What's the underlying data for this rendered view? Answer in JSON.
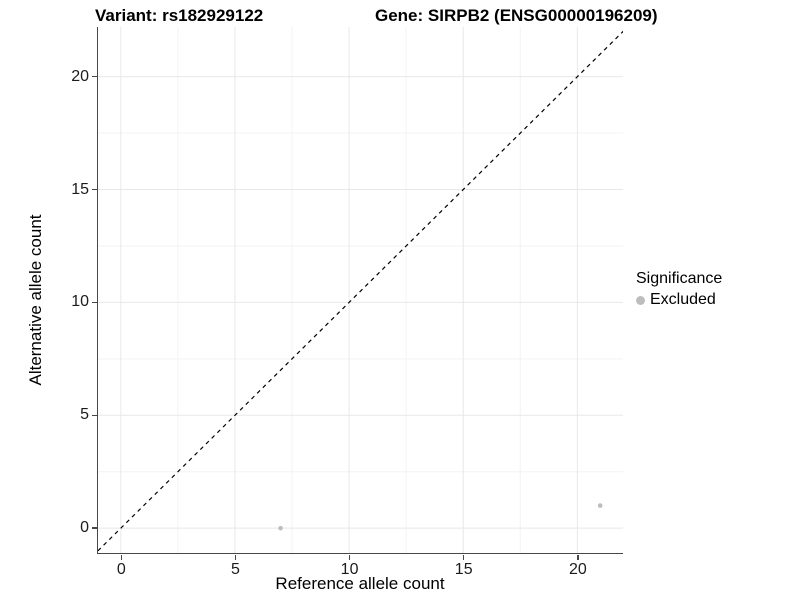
{
  "chart_data": {
    "type": "scatter",
    "title_left": "Variant: rs182929122",
    "title_right": "Gene: SIRPB2 (ENSG00000196209)",
    "xlabel": "Reference allele count",
    "ylabel": "Alternative allele count",
    "xlim": [
      -1.0,
      22.0
    ],
    "ylim": [
      -1.1,
      22.2
    ],
    "x_ticks": [
      0,
      5,
      10,
      15,
      20
    ],
    "y_ticks": [
      0,
      5,
      10,
      15,
      20
    ],
    "x_minor_ticks": [
      2.5,
      7.5,
      12.5,
      17.5
    ],
    "y_minor_ticks": [
      2.5,
      7.5,
      12.5,
      17.5
    ],
    "grid": true,
    "reference_line": {
      "type": "abline",
      "intercept": 0,
      "slope": 1,
      "style": "dashed"
    },
    "series": [
      {
        "name": "Excluded",
        "color": "#bdbdbd",
        "points": [
          {
            "x": 7,
            "y": 0
          },
          {
            "x": 21,
            "y": 1
          }
        ]
      }
    ],
    "legend": {
      "title": "Significance",
      "position": "right",
      "items": [
        {
          "label": "Excluded",
          "color": "#bdbdbd"
        }
      ]
    },
    "colors": {
      "point": "#bdbdbd",
      "grid_major": "#e8e8e8",
      "grid_minor": "#f3f3f3",
      "axis_line": "#474747",
      "reference_line": "#000000",
      "tick_label": "#1c1c1c"
    }
  }
}
